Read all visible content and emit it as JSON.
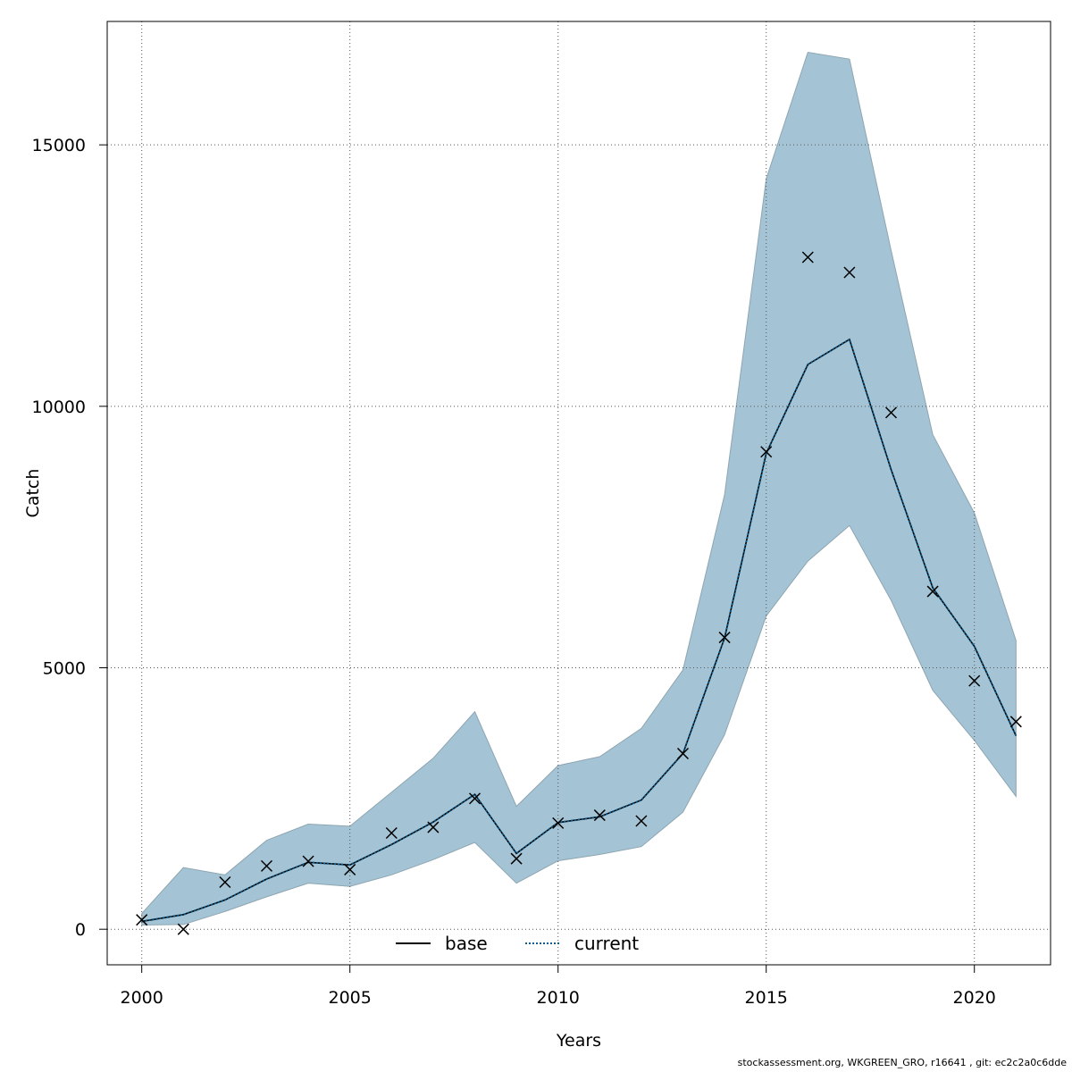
{
  "chart_data": {
    "type": "line",
    "title": "",
    "xlabel": "Years",
    "ylabel": "Catch",
    "xlim": [
      1999.17,
      2021.83
    ],
    "ylim": [
      -680,
      17360
    ],
    "x_ticks": [
      2000,
      2005,
      2010,
      2015,
      2020
    ],
    "y_ticks": [
      0,
      5000,
      10000,
      15000
    ],
    "grid": true,
    "legend_position": "bottom",
    "legend": [
      {
        "name": "base",
        "style": "solid",
        "color": "#000000"
      },
      {
        "name": "current",
        "style": "dotted",
        "color": "#0a5a8a"
      }
    ],
    "x": [
      2000,
      2001,
      2002,
      2003,
      2004,
      2005,
      2006,
      2007,
      2008,
      2009,
      2010,
      2011,
      2012,
      2013,
      2014,
      2015,
      2016,
      2017,
      2018,
      2019,
      2020,
      2021
    ],
    "observed": [
      180,
      0,
      900,
      1210,
      1300,
      1140,
      1840,
      1950,
      2500,
      1350,
      2030,
      2180,
      2070,
      3360,
      5580,
      9130,
      12850,
      12560,
      9880,
      6460,
      4750,
      3970
    ],
    "series": [
      {
        "name": "base",
        "values": [
          150,
          280,
          560,
          960,
          1280,
          1230,
          1620,
          2050,
          2580,
          1450,
          2040,
          2150,
          2470,
          3360,
          5570,
          9100,
          10800,
          11280,
          8790,
          6530,
          5410,
          3700
        ]
      },
      {
        "name": "current",
        "values": [
          150,
          280,
          560,
          960,
          1280,
          1230,
          1620,
          2050,
          2580,
          1450,
          2040,
          2150,
          2470,
          3360,
          5570,
          9100,
          10800,
          11280,
          8790,
          6530,
          5410,
          3700
        ]
      }
    ],
    "band": {
      "lower": [
        80,
        90,
        340,
        620,
        880,
        820,
        1040,
        1330,
        1660,
        880,
        1310,
        1430,
        1580,
        2240,
        3720,
        5990,
        7040,
        7720,
        6290,
        4570,
        3610,
        2540
      ],
      "upper": [
        300,
        1180,
        1040,
        1700,
        2010,
        1970,
        2620,
        3270,
        4160,
        2350,
        3130,
        3300,
        3840,
        4960,
        8310,
        14350,
        16770,
        16640,
        12980,
        9460,
        7960,
        5520
      ],
      "color": "#a4c4d5"
    },
    "colors": {
      "band_edge": "#8ea5b1",
      "grid": "#555555",
      "observed_marker": "#000000"
    }
  },
  "footer": "stockassessment.org, WKGREEN_GRO, r16641 , git: ec2c2a0c6dde"
}
